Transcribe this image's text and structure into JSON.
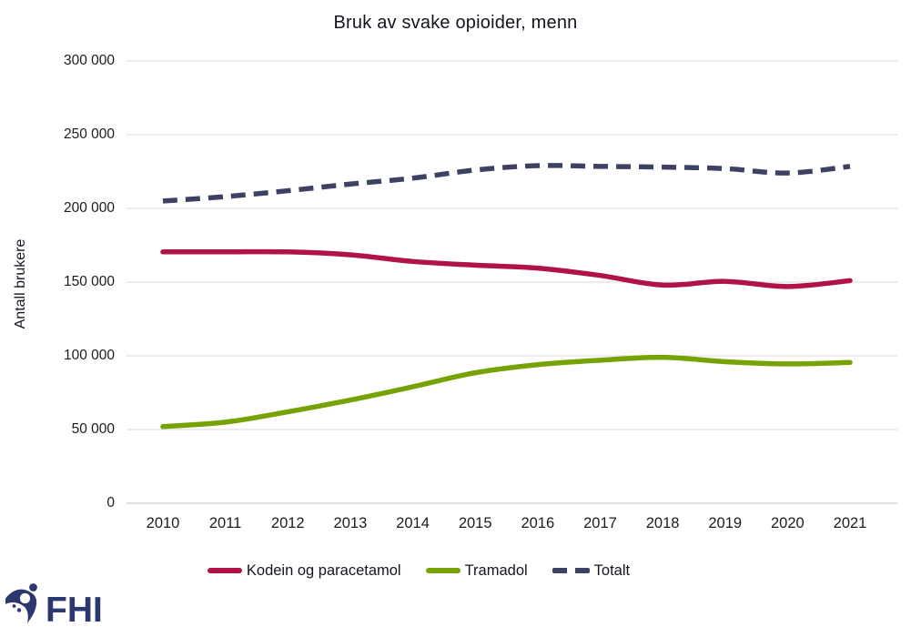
{
  "logo": {
    "text": "FHI",
    "color": "#2b386e"
  },
  "chart_data": {
    "type": "line",
    "title": "Bruk av svake opioider, menn",
    "xlabel": "",
    "ylabel": "Antall brukere",
    "x": [
      2010,
      2011,
      2012,
      2013,
      2014,
      2015,
      2016,
      2017,
      2018,
      2019,
      2020,
      2021
    ],
    "series": [
      {
        "name": "Kodein og paracetamol",
        "color": "#b01347",
        "style": "solid",
        "values": [
          170500,
          170500,
          170500,
          168500,
          164000,
          161500,
          159500,
          154500,
          148000,
          150500,
          147000,
          151000
        ]
      },
      {
        "name": "Tramadol",
        "color": "#76a204",
        "style": "solid",
        "values": [
          52000,
          55000,
          62000,
          70000,
          79000,
          88500,
          94000,
          97000,
          99000,
          96000,
          94500,
          95500
        ]
      },
      {
        "name": "Totalt",
        "color": "#3d4264",
        "style": "dashed",
        "values": [
          205000,
          208000,
          212000,
          216500,
          220500,
          226000,
          229000,
          228500,
          228000,
          227000,
          224000,
          228500
        ]
      }
    ],
    "ylim": [
      0,
      300000
    ],
    "yticks": [
      {
        "value": 0,
        "label": "0"
      },
      {
        "value": 50000,
        "label": "50 000"
      },
      {
        "value": 100000,
        "label": "100 000"
      },
      {
        "value": 150000,
        "label": "150 000"
      },
      {
        "value": 200000,
        "label": "200 000"
      },
      {
        "value": 250000,
        "label": "250 000"
      },
      {
        "value": 300000,
        "label": "300 000"
      }
    ],
    "grid": true,
    "gridline_color": "#d9d9d9",
    "axisline_color": "#bfbfbf",
    "legend_position": "bottom"
  }
}
